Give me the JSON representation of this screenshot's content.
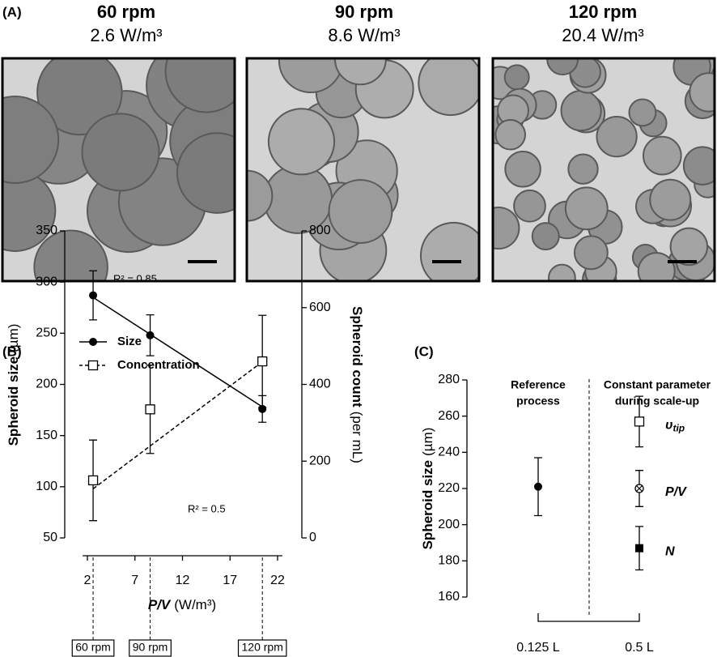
{
  "panel_a": {
    "label": "(A)",
    "images": [
      {
        "title": "60 rpm",
        "subtitle": "2.6 W/m³"
      },
      {
        "title": "90 rpm",
        "subtitle": "8.6 W/m³"
      },
      {
        "title": "120 rpm",
        "subtitle": "20.4 W/m³"
      }
    ]
  },
  "chart_data": [
    {
      "type": "line",
      "label": "(B)",
      "x": [
        2.6,
        8.6,
        20.4
      ],
      "x_labels": [
        "60 rpm",
        "90 rpm",
        "120 rpm"
      ],
      "xlim": [
        1.5,
        22.5
      ],
      "xticks": [
        2,
        7,
        12,
        17,
        22
      ],
      "xlabel": "P/V",
      "xlabel_unit": "(W/m³)",
      "ylim": [
        50,
        350
      ],
      "yticks": [
        50,
        100,
        150,
        200,
        250,
        300,
        350
      ],
      "ylabel": "Spheroid size",
      "ylabel_unit": "(µm)",
      "y2lim": [
        0,
        800
      ],
      "y2ticks": [
        0,
        200,
        400,
        600,
        800
      ],
      "y2label": "Spheroid count",
      "y2label_unit": "(per mL)",
      "series": [
        {
          "name": "Size",
          "color": "#000000",
          "marker": "filled-circle",
          "line": "solid",
          "values": [
            287,
            248,
            176
          ],
          "errors": [
            24,
            20,
            13
          ],
          "fit": [
            285,
            178
          ],
          "annotation": "R² = 0.85"
        },
        {
          "name": "Concentration",
          "axis": "y2",
          "color": "#000000",
          "marker": "open-square",
          "line": "dashed",
          "values": [
            150,
            335,
            460
          ],
          "errors": [
            105,
            115,
            120
          ],
          "fit": [
            128,
            459
          ],
          "annotation": "R² = 0.5"
        }
      ]
    },
    {
      "type": "scatter",
      "label": "(C)",
      "categories": [
        "0.125 L",
        "0.5 L"
      ],
      "headers": [
        [
          "Reference",
          "process"
        ],
        [
          "Constant parameter",
          "during scale-up"
        ]
      ],
      "ylim": [
        160,
        280
      ],
      "yticks": [
        160,
        180,
        200,
        220,
        240,
        260,
        280
      ],
      "ylabel": "Spheroid size",
      "ylabel_unit": "(µm)",
      "reference": {
        "value": 221,
        "error": 16,
        "marker": "filled-circle"
      },
      "scale_up": [
        {
          "label": "υ",
          "label_sub": "tip",
          "value": 257,
          "error": 14,
          "marker": "open-square"
        },
        {
          "label": "P/V",
          "value": 220,
          "error": 10,
          "marker": "circle-x"
        },
        {
          "label": "N",
          "value": 187,
          "error": 12,
          "marker": "filled-square"
        }
      ]
    }
  ]
}
